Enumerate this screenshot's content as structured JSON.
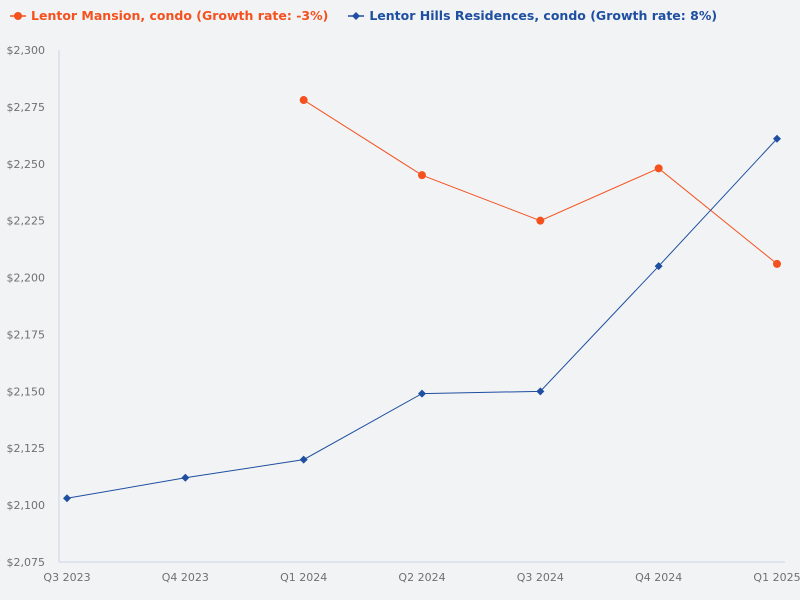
{
  "legend": [
    {
      "label": "Lentor Mansion, condo (Growth rate: -3%)",
      "color": "#f4511e",
      "marker": "circle"
    },
    {
      "label": "Lentor Hills Residences, condo (Growth rate: 8%)",
      "color": "#1e4fa0",
      "marker": "diamond"
    }
  ],
  "chart_data": {
    "type": "line",
    "title": "",
    "xlabel": "",
    "ylabel": "",
    "categories": [
      "Q3 2023",
      "Q4 2023",
      "Q1 2024",
      "Q2 2024",
      "Q3 2024",
      "Q4 2024",
      "Q1 2025"
    ],
    "series": [
      {
        "name": "Lentor Mansion, condo (Growth rate: -3%)",
        "color": "#f4511e",
        "marker": "circle",
        "values": [
          null,
          null,
          2278,
          2245,
          2225,
          2248,
          2206
        ]
      },
      {
        "name": "Lentor Hills Residences, condo (Growth rate: 8%)",
        "color": "#1e4fa0",
        "marker": "diamond",
        "values": [
          2103,
          2112,
          2120,
          2149,
          2150,
          2205,
          2261
        ]
      }
    ],
    "ylim": [
      2075,
      2300
    ],
    "yticks": [
      2075,
      2100,
      2125,
      2150,
      2175,
      2200,
      2225,
      2250,
      2275,
      2300
    ],
    "ytick_labels": [
      "$2,075",
      "$2,100",
      "$2,125",
      "$2,150",
      "$2,175",
      "$2,200",
      "$2,225",
      "$2,250",
      "$2,275",
      "$2,300"
    ],
    "grid": false,
    "legend_position": "top-left"
  }
}
